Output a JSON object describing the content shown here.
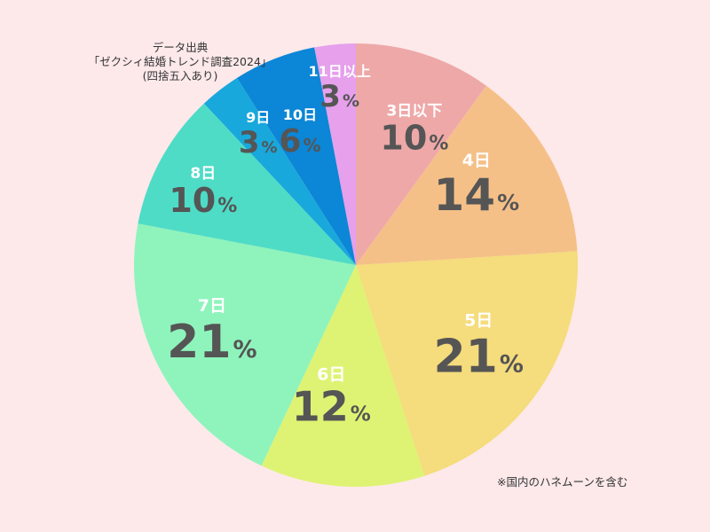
{
  "source": {
    "line1": "データ出典",
    "line2": "「ゼクシィ結婚トレンド調査2024」",
    "line3": "(四捨五入あり)"
  },
  "footnote": "※国内のハネムーンを含む",
  "chart_data": {
    "type": "pie",
    "start": "12 o'clock",
    "direction": "clockwise",
    "slices": [
      {
        "label": "3日以下",
        "value": 10,
        "color": "#eea8a8"
      },
      {
        "label": "4日",
        "value": 14,
        "color": "#f5c088"
      },
      {
        "label": "5日",
        "value": 21,
        "color": "#f5dc7c"
      },
      {
        "label": "6日",
        "value": 12,
        "color": "#def373"
      },
      {
        "label": "7日",
        "value": 21,
        "color": "#8ef4bc"
      },
      {
        "label": "8日",
        "value": 10,
        "color": "#4edcc6"
      },
      {
        "label": "9日",
        "value": 3,
        "color": "#18a8dc"
      },
      {
        "label": "10日",
        "value": 6,
        "color": "#0c86d6"
      },
      {
        "label": "11日以上",
        "value": 3,
        "color": "#e6a0ec"
      }
    ],
    "unit": "%"
  }
}
